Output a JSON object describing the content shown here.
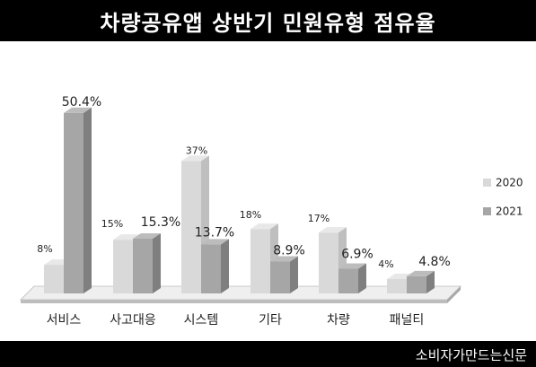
{
  "title": "차량공유앱 상반기 민원유형 점유율",
  "footer": "소비자가만드는신문",
  "colors": {
    "s2020_front": "#d9d9d9",
    "s2020_side": "#bfbfbf",
    "s2020_top": "#e8e8e8",
    "s2021_front": "#a6a6a6",
    "s2021_side": "#7f7f7f",
    "s2021_top": "#bcbcbc"
  },
  "chart_data": {
    "type": "bar",
    "categories": [
      "서비스",
      "사고대응",
      "시스템",
      "기타",
      "차량",
      "패널티"
    ],
    "series": [
      {
        "name": "2020",
        "values": [
          8,
          15,
          37,
          18,
          17,
          4
        ],
        "labels": [
          "8%",
          "15%",
          "37%",
          "18%",
          "17%",
          "4%"
        ]
      },
      {
        "name": "2021",
        "values": [
          50.4,
          15.3,
          13.7,
          8.9,
          6.9,
          4.8
        ],
        "labels": [
          "50.4%",
          "15.3%",
          "13.7%",
          "8.9%",
          "6.9%",
          "4.8%"
        ]
      }
    ],
    "ylim": [
      0,
      52
    ],
    "grid": false,
    "legend_position": "right"
  }
}
